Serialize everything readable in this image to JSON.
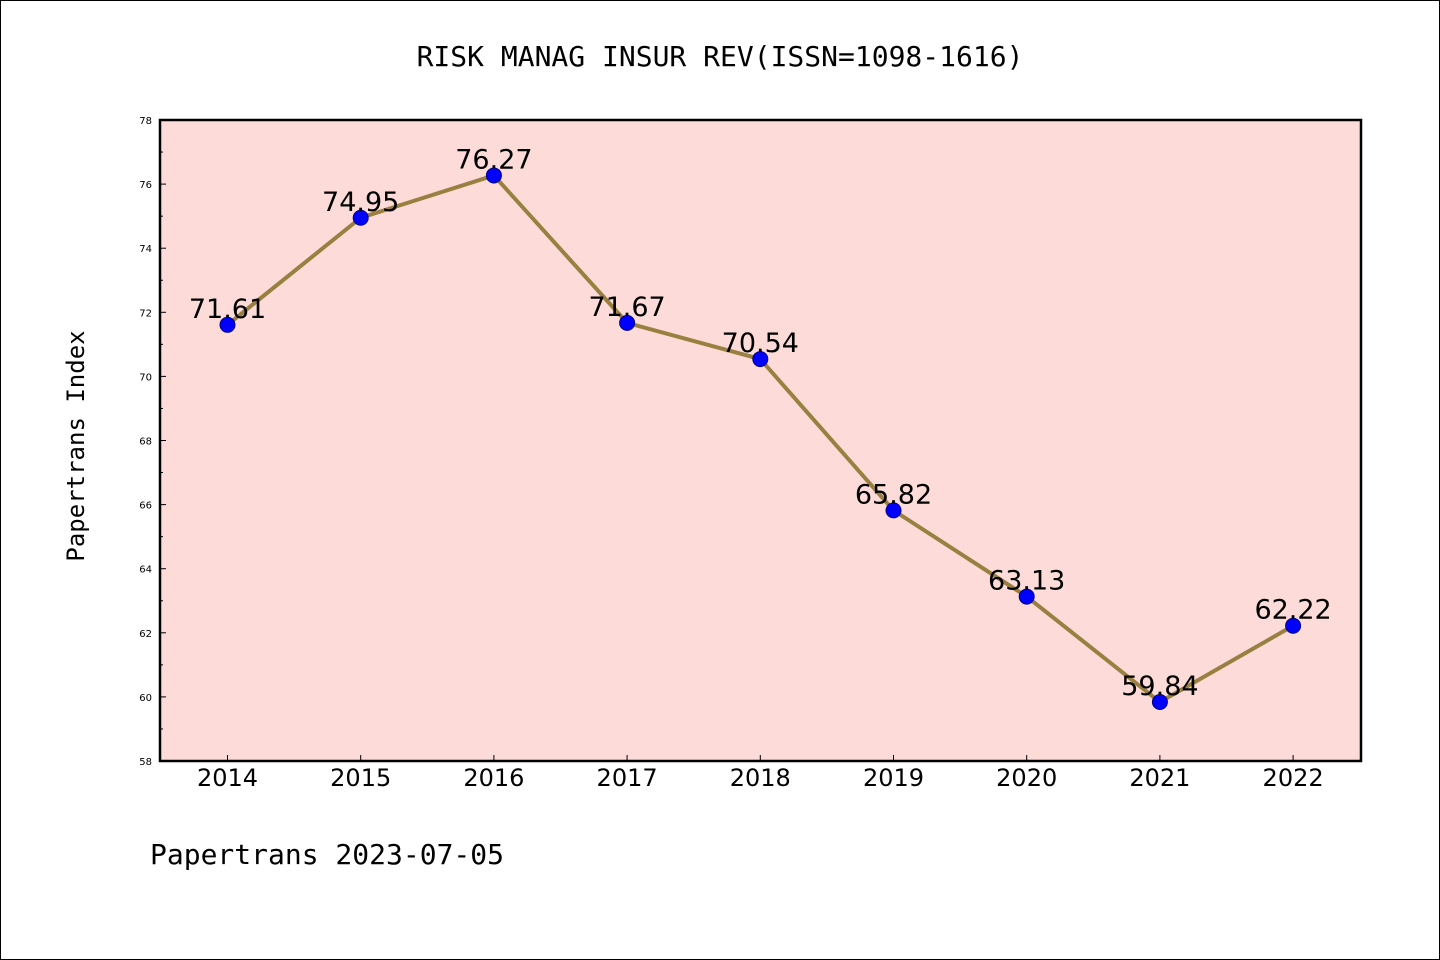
{
  "chart_data": {
    "type": "line",
    "title": "RISK MANAG INSUR REV(ISSN=1098-1616)",
    "xlabel": "",
    "ylabel": "Papertrans Index",
    "categories": [
      "2014",
      "2015",
      "2016",
      "2017",
      "2018",
      "2019",
      "2020",
      "2021",
      "2022"
    ],
    "values": [
      71.61,
      74.95,
      76.27,
      71.67,
      70.54,
      65.82,
      63.13,
      59.84,
      62.22
    ],
    "value_labels": [
      "71.61",
      "74.95",
      "76.27",
      "71.67",
      "70.54",
      "65.82",
      "63.13",
      "59.84",
      "62.22"
    ],
    "ylim": [
      58,
      78
    ],
    "yticks": [
      "58",
      "60",
      "62",
      "64",
      "66",
      "68",
      "70",
      "72",
      "74",
      "76",
      "78"
    ],
    "grid": false,
    "legend": "none",
    "footer": "Papertrans 2023-07-05"
  },
  "colors": {
    "plot_background": "#fddbd8",
    "line": "#9a8040",
    "marker": "#0000ff",
    "marker_edge": "#000080",
    "axes": "#000000"
  }
}
